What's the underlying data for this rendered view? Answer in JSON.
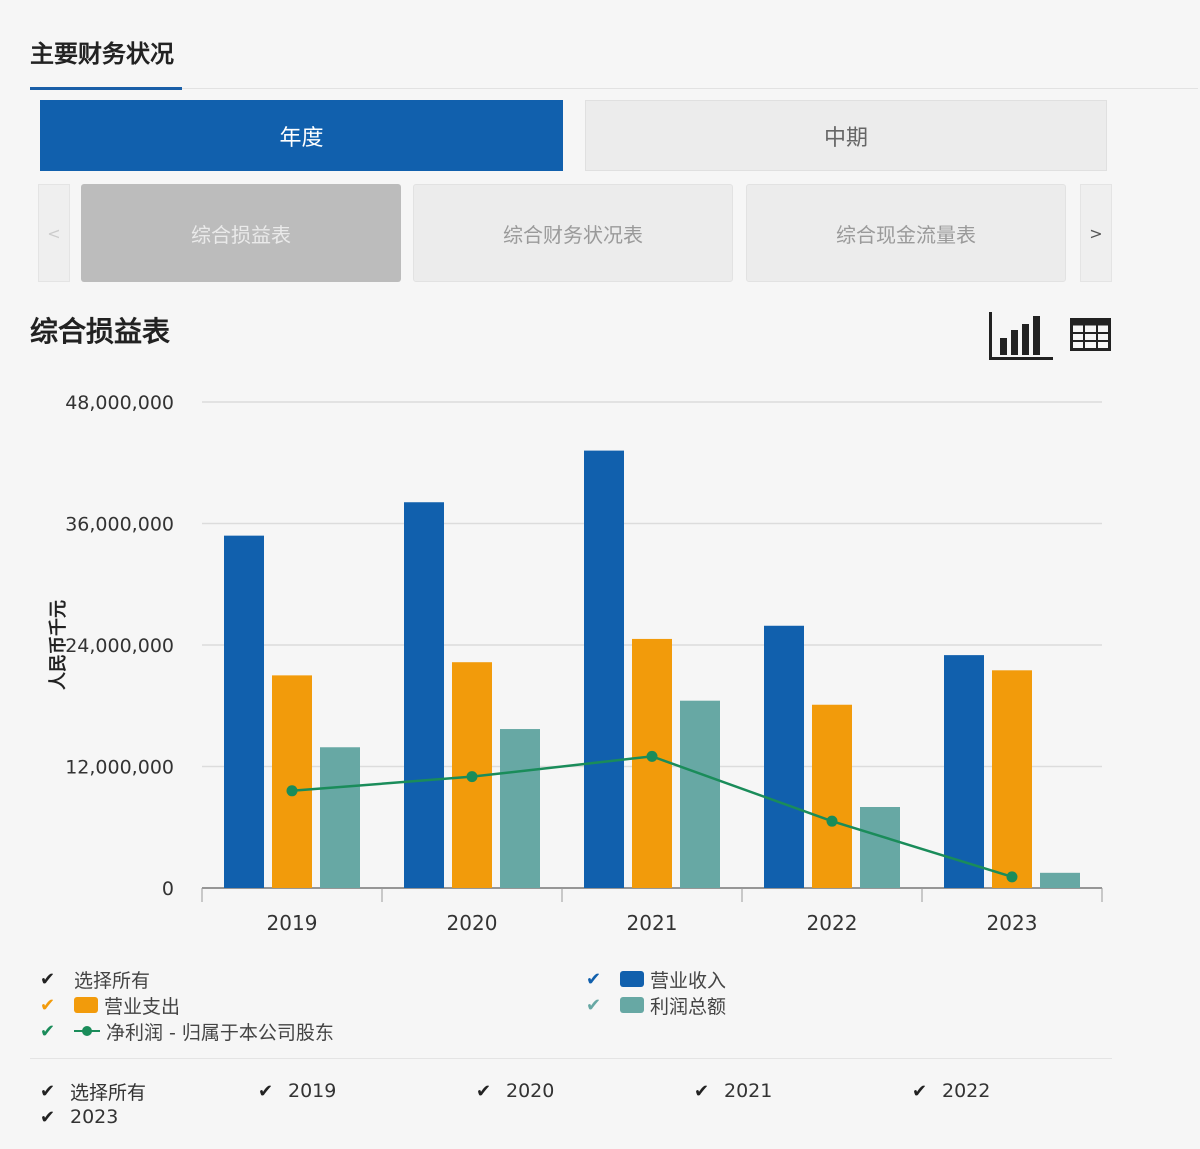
{
  "header": {
    "title": "主要财务状况"
  },
  "period_tabs": {
    "annual": "年度",
    "interim": "中期"
  },
  "statement_tabs": {
    "prev": "<",
    "next": ">",
    "items": [
      "综合损益表",
      "综合财务状况表",
      "综合现金流量表"
    ]
  },
  "chart_title": "综合损益表",
  "icons": {
    "chart_view": "bar-chart-icon",
    "table_view": "table-icon"
  },
  "colors": {
    "revenue": "#1160ad",
    "expense": "#f29b0b",
    "profit": "#67a8a4",
    "net_profit": "#1a8c5a",
    "accent": "#1160ad"
  },
  "chart_data": {
    "type": "bar",
    "categories": [
      "2019",
      "2020",
      "2021",
      "2022",
      "2023"
    ],
    "ylabel": "人民币千元",
    "ylim": [
      0,
      48000000
    ],
    "yticks": [
      "0",
      "12,000,000",
      "24,000,000",
      "36,000,000",
      "48,000,000"
    ],
    "ytick_values": [
      0,
      12000000,
      24000000,
      36000000,
      48000000
    ],
    "grid": true,
    "series": [
      {
        "name": "营业收入",
        "type": "bar",
        "values": [
          34800000,
          38100000,
          43200000,
          25900000,
          23000000
        ]
      },
      {
        "name": "营业支出",
        "type": "bar",
        "values": [
          21000000,
          22300000,
          24600000,
          18100000,
          21500000
        ]
      },
      {
        "name": "利润总额",
        "type": "bar",
        "values": [
          13900000,
          15700000,
          18500000,
          8000000,
          1500000
        ]
      },
      {
        "name": "净利润 - 归属于本公司股东",
        "type": "line",
        "values": [
          9600000,
          11000000,
          13000000,
          6600000,
          1100000
        ]
      }
    ]
  },
  "legend": {
    "select_all": "选择所有",
    "items": [
      "营业收入",
      "营业支出",
      "利润总额",
      "净利润 - 归属于本公司股东"
    ]
  },
  "year_filter": {
    "select_all": "选择所有",
    "years": [
      "2019",
      "2020",
      "2021",
      "2022",
      "2023"
    ]
  }
}
